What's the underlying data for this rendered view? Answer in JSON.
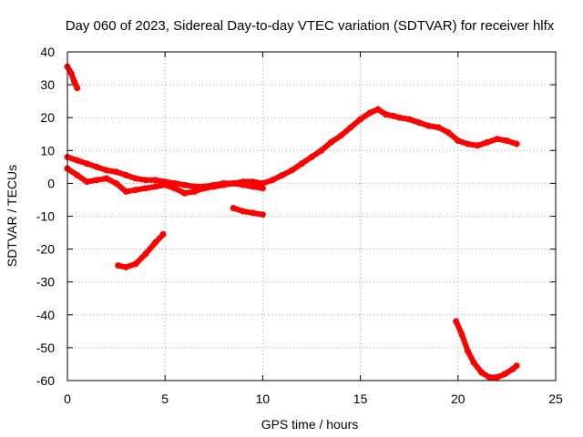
{
  "chart_data": {
    "type": "scatter",
    "title": "Day 060 of 2023, Sidereal Day-to-day VTEC variation (SDTVAR) for receiver hlfx",
    "xlabel": "GPS time / hours",
    "ylabel": "SDTVAR / TECUs",
    "xlim": [
      0,
      25
    ],
    "ylim": [
      -60,
      40
    ],
    "x_ticks": [
      0,
      5,
      10,
      15,
      20,
      25
    ],
    "x_tick_labels": [
      "0",
      "5",
      "10",
      "15",
      "20",
      "25"
    ],
    "y_ticks": [
      40,
      30,
      20,
      10,
      0,
      -10,
      -20,
      -30,
      -40,
      -50,
      -60
    ],
    "y_tick_labels": [
      "40",
      "30",
      "20",
      "10",
      "0",
      "-10",
      "-20",
      "-30",
      "-40",
      "-50",
      "-60"
    ],
    "grid": true,
    "series_color": "#ff0000",
    "series": [
      {
        "name": "early-spike",
        "x": [
          0.0,
          0.2,
          0.35,
          0.5
        ],
        "y": [
          35.5,
          33.5,
          31.0,
          29.0
        ]
      },
      {
        "name": "main-trace-upper",
        "x": [
          0.0,
          0.5,
          1.0,
          1.5,
          2.0,
          2.5,
          3.0,
          3.5,
          4.0,
          4.5,
          5.0,
          5.5,
          6.0,
          6.5,
          7.0,
          7.5,
          8.0,
          8.5,
          9.0,
          9.5,
          10.0,
          10.5,
          11.0,
          11.5,
          12.0,
          12.5,
          13.0,
          13.5,
          14.0,
          14.5,
          15.0,
          15.5,
          15.9,
          16.3,
          16.7,
          17.0,
          17.5,
          18.0,
          18.5,
          19.0,
          19.5,
          20.0,
          20.5,
          21.0,
          21.5,
          22.0,
          22.5,
          23.0
        ],
        "y": [
          8.0,
          7.0,
          6.0,
          5.0,
          4.0,
          3.5,
          2.5,
          1.5,
          1.0,
          1.0,
          0.5,
          0.0,
          -0.5,
          -1.0,
          -1.0,
          -0.5,
          0.0,
          0.0,
          0.5,
          0.5,
          0.0,
          1.0,
          2.5,
          4.0,
          6.0,
          8.0,
          10.0,
          12.5,
          14.5,
          17.0,
          19.5,
          21.5,
          22.5,
          21.0,
          20.5,
          20.0,
          19.5,
          18.5,
          17.5,
          17.0,
          15.5,
          13.0,
          12.0,
          11.5,
          12.5,
          13.5,
          13.0,
          12.0
        ]
      },
      {
        "name": "main-trace-lower",
        "x": [
          0.0,
          0.5,
          1.0,
          1.5,
          2.0,
          2.5,
          3.0,
          3.5,
          4.0,
          4.5,
          5.0,
          5.5,
          6.0,
          6.5,
          7.0,
          7.5,
          8.0,
          8.5,
          9.0,
          9.5,
          10.0
        ],
        "y": [
          4.5,
          2.5,
          0.5,
          1.0,
          1.5,
          0.0,
          -2.5,
          -2.0,
          -1.5,
          -1.0,
          -0.5,
          -1.5,
          -3.0,
          -2.5,
          -1.5,
          -1.0,
          -0.5,
          0.0,
          -0.5,
          -1.0,
          -1.5
        ]
      },
      {
        "name": "short-band-8-10h",
        "x": [
          8.5,
          9.0,
          9.5,
          10.0
        ],
        "y": [
          -7.5,
          -8.5,
          -9.0,
          -9.5
        ]
      },
      {
        "name": "low-arc-3-5h",
        "x": [
          2.6,
          3.0,
          3.5,
          4.0,
          4.5,
          4.9
        ],
        "y": [
          -25.0,
          -25.5,
          -24.5,
          -21.5,
          -18.0,
          -15.5
        ]
      },
      {
        "name": "low-arc-20-23h",
        "x": [
          19.9,
          20.2,
          20.5,
          20.8,
          21.2,
          21.6,
          22.0,
          22.4,
          22.8,
          23.0
        ],
        "y": [
          -42.0,
          -46.0,
          -51.0,
          -54.5,
          -57.5,
          -59.0,
          -59.0,
          -58.0,
          -56.5,
          -55.5
        ]
      }
    ]
  }
}
